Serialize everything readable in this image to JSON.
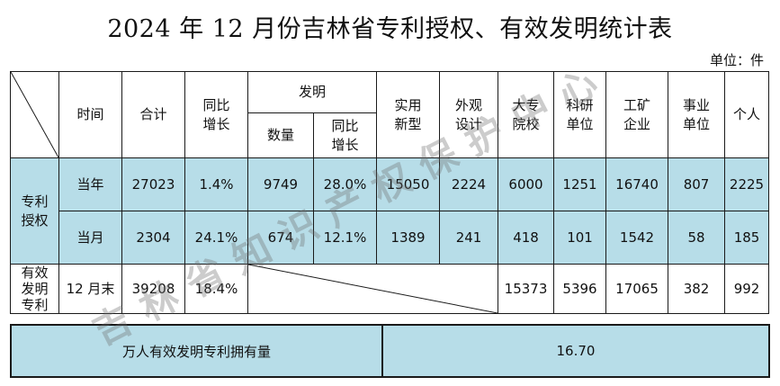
{
  "title": "2024 年 12 月份吉林省专利授权、有效发明统计表",
  "unit_label": "单位：件",
  "headers": {
    "time": "时间",
    "total": "合计",
    "yoy_growth": "同比\n增长",
    "invention": "发明",
    "invention_count": "数量",
    "invention_growth": "同比\n增长",
    "utility": "实用\n新型",
    "design": "外观\n设计",
    "universities": "大专\n院校",
    "research": "科研\n单位",
    "enterprises": "工矿\n企业",
    "institutions": "事业\n单位",
    "individuals": "个人"
  },
  "sections": {
    "grant_label": "专利\n授权",
    "valid_label": "有效\n发明\n专利"
  },
  "rows": {
    "current_year": {
      "period": "当年",
      "total": "27023",
      "yoy_growth": "1.4%",
      "invention_count": "9749",
      "invention_growth": "28.0%",
      "utility": "15050",
      "design": "2224",
      "universities": "6000",
      "research": "1251",
      "enterprises": "16740",
      "institutions": "807",
      "individuals": "2225"
    },
    "current_month": {
      "period": "当月",
      "total": "2304",
      "yoy_growth": "24.1%",
      "invention_count": "674",
      "invention_growth": "12.1%",
      "utility": "1389",
      "design": "241",
      "universities": "418",
      "research": "101",
      "enterprises": "1542",
      "institutions": "58",
      "individuals": "185"
    },
    "month_end": {
      "period": "12 月末",
      "total": "39208",
      "yoy_growth": "18.4%",
      "universities": "15373",
      "research": "5396",
      "enterprises": "17065",
      "institutions": "382",
      "individuals": "992"
    }
  },
  "summary": {
    "label": "万人有效发明专利拥有量",
    "value": "16.70"
  },
  "watermark": "吉林省知识产权保护中心",
  "colors": {
    "highlight_fill": "#b7dde8",
    "border": "#1a1a1a"
  }
}
